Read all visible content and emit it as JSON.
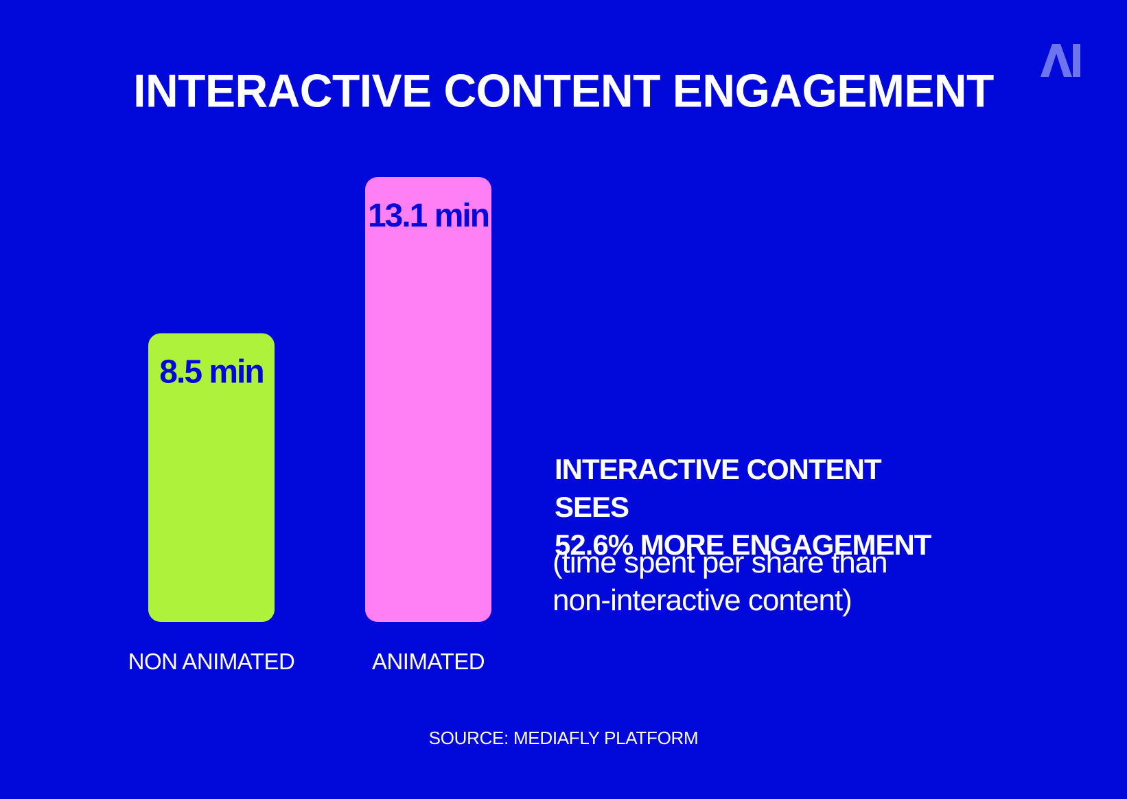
{
  "logo": {
    "text": "AI",
    "color": "#6C74F0"
  },
  "colors": {
    "background": "#0009D9",
    "text": "#ffffff",
    "value_text": "#0009D9"
  },
  "chart_data": {
    "type": "bar",
    "title": "INTERACTIVE CONTENT ENGAGEMENT",
    "categories": [
      "NON ANIMATED",
      "ANIMATED"
    ],
    "values": [
      8.5,
      13.1
    ],
    "value_labels": [
      "8.5 min",
      "13.1 min"
    ],
    "bar_colors": [
      "#AEF23C",
      "#FF80F5"
    ],
    "unit": "min",
    "xlabel": "",
    "ylabel": "",
    "ylim": [
      0,
      13.1
    ],
    "grid": false
  },
  "annotation": {
    "headline_line1": "INTERACTIVE CONTENT SEES",
    "headline_line2": "52.6% MORE ENGAGEMENT",
    "subtext_line1": "(time spent per share than",
    "subtext_line2": "non-interactive content)"
  },
  "source": "SOURCE: MEDIAFLY PLATFORM"
}
